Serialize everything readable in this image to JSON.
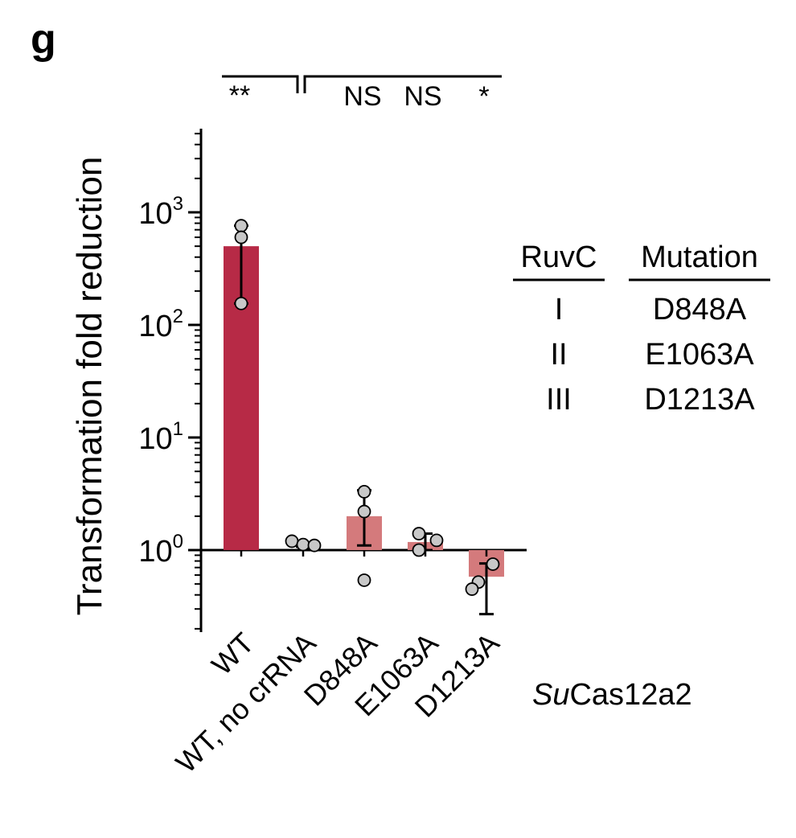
{
  "panel_label": "g",
  "colors": {
    "wt_bar": "#b72a46",
    "mutant_bar": "#d47a7c",
    "point_fill": "#c8c8c8",
    "ink": "#000000"
  },
  "chart_data": {
    "type": "bar",
    "scale": "log",
    "ylabel": "Transformation fold reduction",
    "ylim": [
      0.2,
      5000
    ],
    "baseline": 1,
    "ticks": [
      {
        "value": 1,
        "base": "10",
        "exp": "0"
      },
      {
        "value": 10,
        "base": "10",
        "exp": "1"
      },
      {
        "value": 100,
        "base": "10",
        "exp": "2"
      },
      {
        "value": 1000,
        "base": "10",
        "exp": "3"
      }
    ],
    "categories": [
      "WT",
      "WT, no crRNA",
      "D848A",
      "E1063A",
      "D1213A"
    ],
    "values": [
      500,
      1.12,
      2.0,
      1.18,
      0.58
    ],
    "error_low": [
      155,
      1.07,
      1.1,
      1.0,
      0.27
    ],
    "error_high": [
      760,
      1.16,
      3.4,
      1.4,
      0.76
    ],
    "points": [
      [
        760,
        600,
        155
      ],
      [
        1.2,
        1.12,
        1.1
      ],
      [
        3.3,
        2.2,
        0.54
      ],
      [
        1.4,
        1.22,
        1.0
      ],
      [
        0.75,
        0.52,
        0.45
      ]
    ],
    "bar_color_keys": [
      "wt_bar",
      "none",
      "mutant_bar",
      "mutant_bar",
      "mutant_bar"
    ],
    "significance": {
      "left": {
        "label": "**"
      },
      "right": {
        "labels": [
          "NS",
          "NS",
          "*"
        ]
      }
    }
  },
  "table": {
    "headers": [
      "RuvC",
      "Mutation"
    ],
    "rows": [
      [
        "I",
        "D848A"
      ],
      [
        "II",
        "E1063A"
      ],
      [
        "III",
        "D1213A"
      ]
    ]
  },
  "protein_label": {
    "italic": "Su",
    "rest": "Cas12a2"
  }
}
